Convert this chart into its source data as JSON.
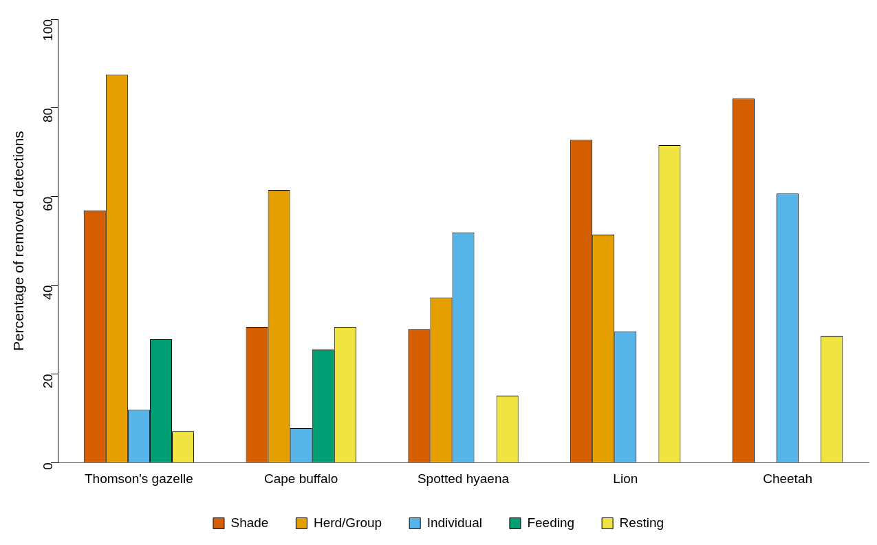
{
  "chart_data": {
    "type": "bar",
    "ylabel": "Percentage of removed detections",
    "categories": [
      "Thomson's gazelle",
      "Cape buffalo",
      "Spotted hyaena",
      "Lion",
      "Cheetah"
    ],
    "series": [
      {
        "name": "Shade",
        "color": "#d55e00",
        "values": [
          56.9,
          30.6,
          30.1,
          72.8,
          82.1
        ]
      },
      {
        "name": "Herd/Group",
        "color": "#e69f00",
        "values": [
          87.5,
          61.5,
          37.2,
          51.4,
          null
        ]
      },
      {
        "name": "Individual",
        "color": "#56b4e9",
        "values": [
          11.9,
          7.8,
          51.9,
          29.6,
          60.7
        ]
      },
      {
        "name": "Feeding",
        "color": "#009e73",
        "values": [
          27.8,
          25.5,
          null,
          null,
          null
        ]
      },
      {
        "name": "Resting",
        "color": "#f0e442",
        "values": [
          7.0,
          30.6,
          15.1,
          71.6,
          28.6
        ]
      }
    ],
    "ylim": [
      0,
      100
    ],
    "yticks": [
      0,
      20,
      40,
      60,
      80,
      100
    ],
    "grid": false,
    "legend": "bottom"
  }
}
